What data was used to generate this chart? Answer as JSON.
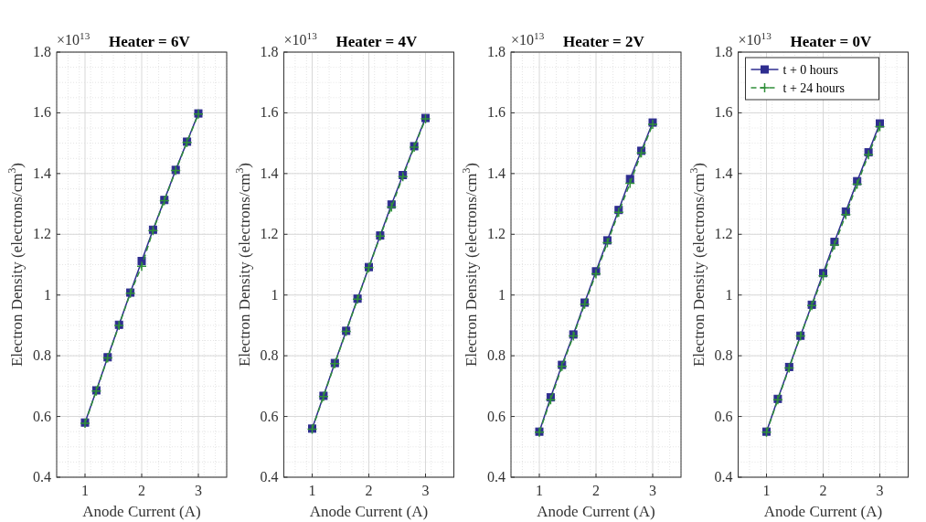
{
  "chart_data": [
    {
      "type": "line",
      "title": "Heater = 6V",
      "annotations": [
        "×10$^{13}$"
      ],
      "xlabel": "Anode Current (A)",
      "ylabel": "Electron Density (electrons/cm$^{3}$)",
      "x": [
        1,
        1.2,
        1.4,
        1.6,
        1.8,
        2,
        2.2,
        2.4,
        2.6,
        2.8,
        3
      ],
      "xlim": [
        0.5,
        3.5
      ],
      "xticks": [
        1,
        2,
        3
      ],
      "ylim": [
        0.4,
        1.8
      ],
      "yticks": [
        0.4,
        0.6,
        0.8,
        1,
        1.2,
        1.4,
        1.6,
        1.8
      ],
      "grid": true,
      "series": [
        {
          "color": "#2e2d8f",
          "marker": "square",
          "line_style": "solid",
          "values": [
            0.58,
            0.686,
            0.795,
            0.902,
            1.008,
            1.112,
            1.215,
            1.313,
            1.412,
            1.505,
            1.598
          ]
        },
        {
          "color": "#2f8f3a",
          "marker": "cross",
          "line_style": "dashed",
          "values": [
            0.578,
            0.684,
            0.793,
            0.9,
            1.006,
            1.095,
            1.212,
            1.311,
            1.41,
            1.503,
            1.596
          ]
        }
      ]
    },
    {
      "type": "line",
      "title": "Heater = 4V",
      "annotations": [
        "×10$^{13}$"
      ],
      "xlabel": "Anode Current (A)",
      "ylabel": "Electron Density (electrons/cm$^{3}$)",
      "x": [
        1,
        1.2,
        1.4,
        1.6,
        1.8,
        2,
        2.2,
        2.4,
        2.6,
        2.8,
        3
      ],
      "xlim": [
        0.5,
        3.5
      ],
      "xticks": [
        1,
        2,
        3
      ],
      "ylim": [
        0.4,
        1.8
      ],
      "yticks": [
        0.4,
        0.6,
        0.8,
        1,
        1.2,
        1.4,
        1.6,
        1.8
      ],
      "grid": true,
      "series": [
        {
          "color": "#2e2d8f",
          "marker": "square",
          "line_style": "solid",
          "values": [
            0.56,
            0.668,
            0.776,
            0.882,
            0.988,
            1.092,
            1.196,
            1.298,
            1.395,
            1.49,
            1.583
          ]
        },
        {
          "color": "#2f8f3a",
          "marker": "cross",
          "line_style": "dashed",
          "values": [
            0.558,
            0.666,
            0.774,
            0.88,
            0.986,
            1.09,
            1.194,
            1.29,
            1.39,
            1.487,
            1.58
          ]
        }
      ]
    },
    {
      "type": "line",
      "title": "Heater = 2V",
      "annotations": [
        "×10$^{13}$"
      ],
      "xlabel": "Anode Current (A)",
      "ylabel": "Electron Density (electrons/cm$^{3}$)",
      "x": [
        1,
        1.2,
        1.4,
        1.6,
        1.8,
        2,
        2.2,
        2.4,
        2.6,
        2.8,
        3
      ],
      "xlim": [
        0.5,
        3.5
      ],
      "xticks": [
        1,
        2,
        3
      ],
      "ylim": [
        0.4,
        1.8
      ],
      "yticks": [
        0.4,
        0.6,
        0.8,
        1,
        1.2,
        1.4,
        1.6,
        1.8
      ],
      "grid": true,
      "series": [
        {
          "color": "#2e2d8f",
          "marker": "square",
          "line_style": "solid",
          "values": [
            0.55,
            0.663,
            0.77,
            0.87,
            0.975,
            1.078,
            1.18,
            1.28,
            1.382,
            1.475,
            1.568
          ]
        },
        {
          "color": "#2f8f3a",
          "marker": "cross",
          "line_style": "dashed",
          "values": [
            0.548,
            0.655,
            0.765,
            0.865,
            0.97,
            1.07,
            1.172,
            1.272,
            1.368,
            1.468,
            1.562
          ]
        }
      ]
    },
    {
      "type": "line",
      "title": "Heater = 0V",
      "annotations": [
        "×10$^{13}$"
      ],
      "xlabel": "Anode Current (A)",
      "ylabel": "Electron Density (electrons/cm$^{3}$)",
      "x": [
        1,
        1.2,
        1.4,
        1.6,
        1.8,
        2,
        2.2,
        2.4,
        2.6,
        2.8,
        3
      ],
      "xlim": [
        0.5,
        3.5
      ],
      "xticks": [
        1,
        2,
        3
      ],
      "ylim": [
        0.4,
        1.8
      ],
      "yticks": [
        0.4,
        0.6,
        0.8,
        1,
        1.2,
        1.4,
        1.6,
        1.8
      ],
      "grid": true,
      "legend": "top left",
      "series": [
        {
          "name": "t + 0 hours",
          "color": "#2e2d8f",
          "marker": "square",
          "line_style": "solid",
          "values": [
            0.55,
            0.658,
            0.763,
            0.866,
            0.968,
            1.072,
            1.175,
            1.275,
            1.375,
            1.47,
            1.565
          ]
        },
        {
          "name": "t + 24 hours",
          "color": "#2f8f3a",
          "marker": "cross",
          "line_style": "dashed",
          "values": [
            0.548,
            0.655,
            0.76,
            0.865,
            0.965,
            1.063,
            1.165,
            1.265,
            1.365,
            1.462,
            1.555
          ]
        }
      ]
    }
  ]
}
